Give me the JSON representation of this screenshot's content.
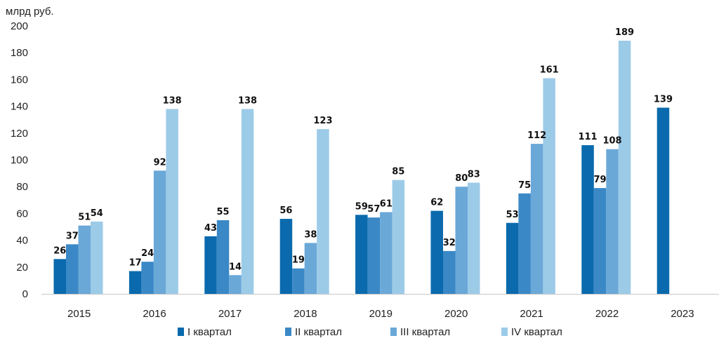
{
  "chart_data": {
    "type": "bar",
    "ylabel": "млрд руб.",
    "ylim": [
      0,
      200
    ],
    "yticks": [
      0,
      20,
      40,
      60,
      80,
      100,
      120,
      140,
      160,
      180,
      200
    ],
    "categories": [
      "2015",
      "2016",
      "2017",
      "2018",
      "2019",
      "2020",
      "2021",
      "2022",
      "2023"
    ],
    "series": [
      {
        "name": "I квартал",
        "color": "#0a6aad",
        "values": [
          26,
          17,
          43,
          56,
          59,
          62,
          53,
          111,
          139
        ]
      },
      {
        "name": "II квартал",
        "color": "#3a88c6",
        "values": [
          37,
          24,
          55,
          19,
          57,
          32,
          75,
          79,
          null
        ]
      },
      {
        "name": "III квартал",
        "color": "#6aa8d8",
        "values": [
          51,
          92,
          14,
          38,
          61,
          80,
          112,
          108,
          null
        ]
      },
      {
        "name": "IV квартал",
        "color": "#9ccbe8",
        "values": [
          54,
          138,
          138,
          123,
          85,
          83,
          161,
          189,
          null
        ]
      }
    ],
    "legend_position": "bottom",
    "grid": false
  }
}
